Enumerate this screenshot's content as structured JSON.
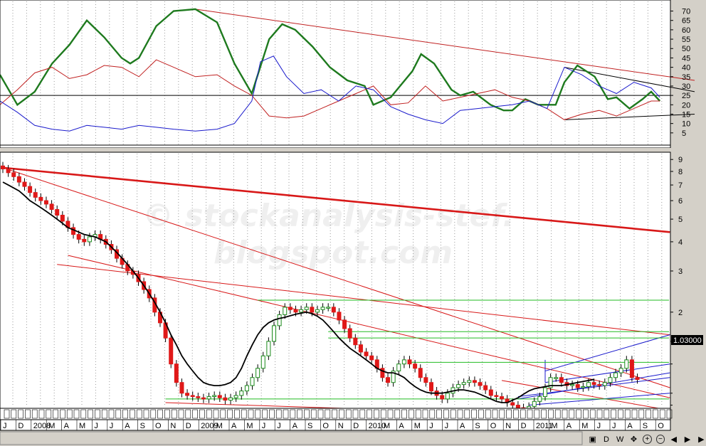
{
  "chart_data": [
    {
      "type": "line",
      "panel": "indicator",
      "title": "",
      "y_ticks": [
        5,
        10,
        15,
        20,
        25,
        30,
        35,
        40,
        45,
        50,
        55,
        60,
        65,
        70
      ],
      "ylim": [
        0,
        74
      ],
      "series": [
        {
          "color": "#1e7a1e",
          "style": "thick",
          "values": [
            [
              0,
              36
            ],
            [
              4,
              20
            ],
            [
              8,
              27
            ],
            [
              12,
              42
            ],
            [
              16,
              52
            ],
            [
              20,
              65
            ],
            [
              24,
              56
            ],
            [
              28,
              45
            ],
            [
              30,
              42
            ],
            [
              32,
              45
            ],
            [
              36,
              62
            ],
            [
              40,
              70
            ],
            [
              45,
              71
            ],
            [
              50,
              64
            ],
            [
              54,
              42
            ],
            [
              58,
              26
            ],
            [
              62,
              55
            ],
            [
              65,
              63
            ],
            [
              68,
              60
            ],
            [
              72,
              51
            ],
            [
              76,
              40
            ],
            [
              80,
              33
            ],
            [
              84,
              30
            ],
            [
              86,
              20
            ],
            [
              90,
              24
            ],
            [
              95,
              38
            ],
            [
              97,
              47
            ],
            [
              100,
              42
            ],
            [
              104,
              28
            ],
            [
              106,
              25
            ],
            [
              109,
              27
            ],
            [
              113,
              20
            ],
            [
              116,
              17
            ],
            [
              118,
              17
            ],
            [
              121,
              23
            ],
            [
              124,
              20
            ],
            [
              128,
              20
            ],
            [
              130,
              32
            ],
            [
              133,
              41
            ],
            [
              137,
              35
            ],
            [
              140,
              23
            ],
            [
              142,
              24
            ],
            [
              145,
              18
            ],
            [
              148,
              23
            ],
            [
              150,
              27
            ],
            [
              152,
              22
            ]
          ]
        },
        {
          "color": "#c02020",
          "style": "thin",
          "values": [
            [
              0,
              20
            ],
            [
              4,
              28
            ],
            [
              8,
              37
            ],
            [
              12,
              40
            ],
            [
              16,
              34
            ],
            [
              20,
              36
            ],
            [
              24,
              41
            ],
            [
              28,
              40
            ],
            [
              32,
              35
            ],
            [
              36,
              44
            ],
            [
              40,
              40
            ],
            [
              45,
              35
            ],
            [
              50,
              36
            ],
            [
              54,
              30
            ],
            [
              58,
              25
            ],
            [
              62,
              14
            ],
            [
              66,
              13
            ],
            [
              70,
              14
            ],
            [
              74,
              18
            ],
            [
              78,
              22
            ],
            [
              82,
              26
            ],
            [
              86,
              30
            ],
            [
              90,
              20
            ],
            [
              94,
              21
            ],
            [
              98,
              30
            ],
            [
              102,
              22
            ],
            [
              106,
              24
            ],
            [
              110,
              26
            ],
            [
              114,
              28
            ],
            [
              118,
              24
            ],
            [
              122,
              22
            ],
            [
              126,
              18
            ],
            [
              130,
              12
            ],
            [
              134,
              15
            ],
            [
              138,
              17
            ],
            [
              142,
              14
            ],
            [
              146,
              18
            ],
            [
              150,
              22
            ],
            [
              152,
              22
            ]
          ]
        },
        {
          "color": "#1a1acc",
          "style": "thin",
          "values": [
            [
              0,
              22
            ],
            [
              4,
              16
            ],
            [
              8,
              9
            ],
            [
              12,
              7
            ],
            [
              16,
              6
            ],
            [
              20,
              9
            ],
            [
              24,
              8
            ],
            [
              28,
              7
            ],
            [
              32,
              9
            ],
            [
              36,
              8
            ],
            [
              40,
              7
            ],
            [
              45,
              6
            ],
            [
              50,
              7
            ],
            [
              54,
              10
            ],
            [
              58,
              22
            ],
            [
              60,
              43
            ],
            [
              63,
              46
            ],
            [
              66,
              35
            ],
            [
              70,
              26
            ],
            [
              74,
              28
            ],
            [
              78,
              22
            ],
            [
              82,
              30
            ],
            [
              86,
              28
            ],
            [
              90,
              19
            ],
            [
              94,
              15
            ],
            [
              98,
              12
            ],
            [
              102,
              10
            ],
            [
              106,
              17
            ],
            [
              110,
              18
            ],
            [
              114,
              19
            ],
            [
              118,
              20
            ],
            [
              122,
              22
            ],
            [
              126,
              18
            ],
            [
              130,
              40
            ],
            [
              134,
              36
            ],
            [
              138,
              30
            ],
            [
              142,
              26
            ],
            [
              146,
              32
            ],
            [
              150,
              29
            ],
            [
              152,
              24
            ]
          ]
        }
      ],
      "hlines": [
        25
      ],
      "trendlines": [
        {
          "color": "#c02020",
          "from": [
            45,
            71
          ],
          "to": [
            160,
            33
          ]
        },
        {
          "color": "#000000",
          "from": [
            130,
            40
          ],
          "to": [
            160,
            27
          ]
        },
        {
          "color": "#000000",
          "from": [
            130,
            12
          ],
          "to": [
            160,
            15
          ]
        }
      ]
    },
    {
      "type": "candlestick",
      "panel": "price",
      "scale": "log",
      "title": "",
      "y_ticks": [
        2,
        3,
        4,
        5,
        6,
        7,
        8,
        9
      ],
      "ylim": [
        1.45,
        9.4
      ],
      "last_price_label": "1.03000",
      "moving_average_color": "#000000",
      "watermark_line1": "© stockanalysis-stef.",
      "watermark_line2": "blogspot.com",
      "x_labels": [
        "J",
        "D",
        "2008",
        "M",
        "A",
        "M",
        "J",
        "J",
        "A",
        "S",
        "O",
        "N",
        "D",
        "2009",
        "M",
        "A",
        "M",
        "J",
        "J",
        "A",
        "S",
        "O",
        "N",
        "D",
        "2010",
        "M",
        "A",
        "M",
        "J",
        "J",
        "A",
        "S",
        "O",
        "N",
        "D",
        "2011",
        "M",
        "A",
        "M",
        "J",
        "J",
        "A",
        "S",
        "O"
      ],
      "closes": [
        8.2,
        7.9,
        7.6,
        7.2,
        6.9,
        6.5,
        6.2,
        6.0,
        5.8,
        5.5,
        5.2,
        4.9,
        4.6,
        4.3,
        4.1,
        4.0,
        4.2,
        4.3,
        4.1,
        3.9,
        3.7,
        3.4,
        3.2,
        3.0,
        2.9,
        2.7,
        2.5,
        2.3,
        2.0,
        1.8,
        1.55,
        1.2,
        1.0,
        0.9,
        0.88,
        0.87,
        0.86,
        0.85,
        0.87,
        0.88,
        0.86,
        0.84,
        0.86,
        0.88,
        0.92,
        0.97,
        1.05,
        1.15,
        1.3,
        1.5,
        1.75,
        1.95,
        2.1,
        2.05,
        2.0,
        2.05,
        2.1,
        2.0,
        2.05,
        2.1,
        2.1,
        2.0,
        1.85,
        1.7,
        1.55,
        1.45,
        1.35,
        1.3,
        1.25,
        1.15,
        1.05,
        1.0,
        1.12,
        1.2,
        1.25,
        1.2,
        1.15,
        1.05,
        1.0,
        0.92,
        0.88,
        0.85,
        0.9,
        0.95,
        0.98,
        1.0,
        1.02,
        1.0,
        0.97,
        0.93,
        0.88,
        0.87,
        0.85,
        0.82,
        0.8,
        0.78,
        0.76,
        0.79,
        0.83,
        0.87,
        0.95,
        1.05,
        1.05,
        1.0,
        0.97,
        0.98,
        0.95,
        0.96,
        1.0,
        0.98,
        0.97,
        1.0,
        1.05,
        1.1,
        1.15,
        1.25,
        1.05,
        1.03
      ],
      "ma": [
        7.2,
        7.0,
        6.8,
        6.6,
        6.3,
        6.0,
        5.8,
        5.6,
        5.4,
        5.2,
        5.0,
        4.8,
        4.6,
        4.5,
        4.4,
        4.3,
        4.25,
        4.2,
        4.1,
        4.0,
        3.8,
        3.6,
        3.4,
        3.2,
        3.0,
        2.8,
        2.6,
        2.4,
        2.2,
        2.0,
        1.8,
        1.6,
        1.45,
        1.3,
        1.2,
        1.12,
        1.05,
        1.0,
        0.98,
        0.97,
        0.97,
        0.98,
        1.0,
        1.05,
        1.15,
        1.3,
        1.45,
        1.6,
        1.72,
        1.8,
        1.85,
        1.88,
        1.9,
        1.93,
        1.96,
        1.98,
        2.0,
        1.97,
        1.92,
        1.85,
        1.75,
        1.65,
        1.55,
        1.47,
        1.4,
        1.35,
        1.3,
        1.25,
        1.2,
        1.15,
        1.12,
        1.1,
        1.1,
        1.08,
        1.05,
        1.0,
        0.96,
        0.93,
        0.91,
        0.9,
        0.9,
        0.9,
        0.91,
        0.92,
        0.93,
        0.93,
        0.92,
        0.91,
        0.89,
        0.87,
        0.85,
        0.83,
        0.82,
        0.82,
        0.84,
        0.86,
        0.89,
        0.92,
        0.94,
        0.95,
        0.96,
        0.97,
        0.97,
        0.97,
        0.98,
        0.99,
        1.0,
        1.01,
        1.02,
        1.03
      ]
    }
  ],
  "toolbar": {
    "buttons": [
      "D",
      "W",
      "pan",
      "zoom-in",
      "zoom-out",
      "back",
      "forward",
      "more"
    ],
    "d_label": "D",
    "w_label": "W"
  }
}
